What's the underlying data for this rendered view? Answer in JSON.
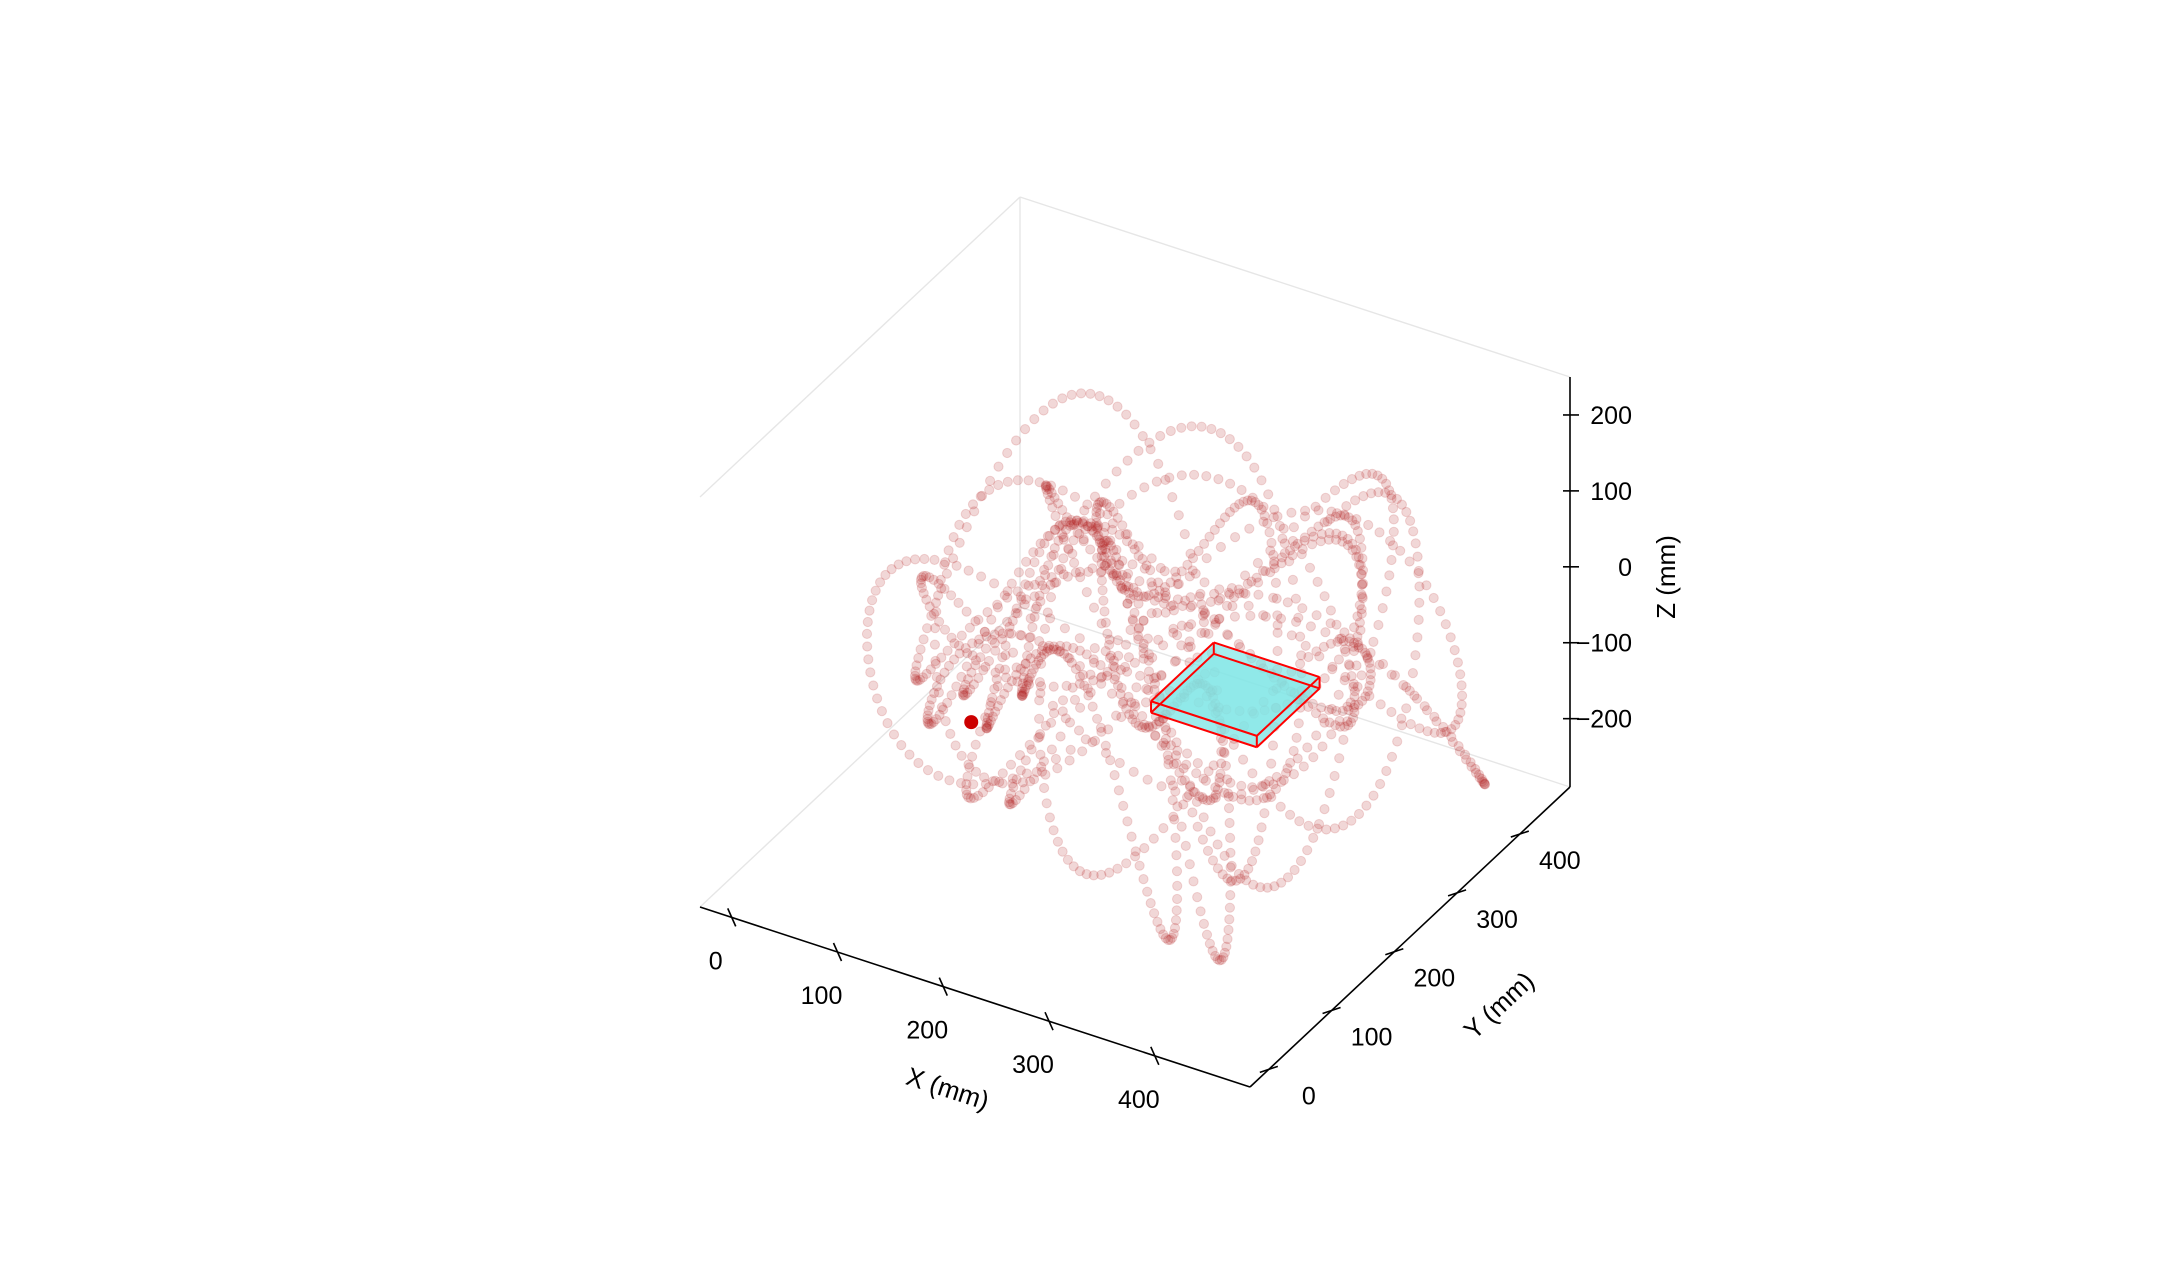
{
  "chart_data": {
    "type": "scatter",
    "title": "",
    "projection": "3d",
    "axes": {
      "x": {
        "label": "X (mm)",
        "ticks": [
          0,
          100,
          200,
          300,
          400
        ],
        "range": [
          -30,
          490
        ]
      },
      "y": {
        "label": "Y (mm)",
        "ticks": [
          0,
          100,
          200,
          300,
          400
        ],
        "range": [
          -30,
          480
        ]
      },
      "z": {
        "label": "Z (mm)",
        "ticks": [
          200,
          100,
          0,
          -100,
          -200
        ],
        "tick_labels": [
          "200",
          "100",
          "0",
          "−100",
          "−200"
        ],
        "range": [
          -290,
          250
        ]
      }
    },
    "grid": false,
    "panes": "white",
    "series": [
      {
        "kind": "trajectory",
        "color": "#b22222",
        "marker": "circle",
        "opacity": 0.18,
        "x_range": [
          30,
          460
        ],
        "y_range": [
          60,
          420
        ],
        "z_range": [
          -260,
          170
        ],
        "loops": 15
      },
      {
        "kind": "start-point",
        "color": "#cc0000",
        "x": 90,
        "y": 200,
        "z": -170
      },
      {
        "kind": "target-box",
        "face_color": "#7fe6e6",
        "edge_color": "#ff0000",
        "x": [
          260,
          360
        ],
        "y": [
          200,
          300
        ],
        "z": [
          -80,
          -65
        ]
      }
    ],
    "colors": {
      "trajectory": "#b22222",
      "box_face": "#7fe6e6",
      "box_edge": "#ff0000",
      "start_point": "#cc0000"
    }
  }
}
